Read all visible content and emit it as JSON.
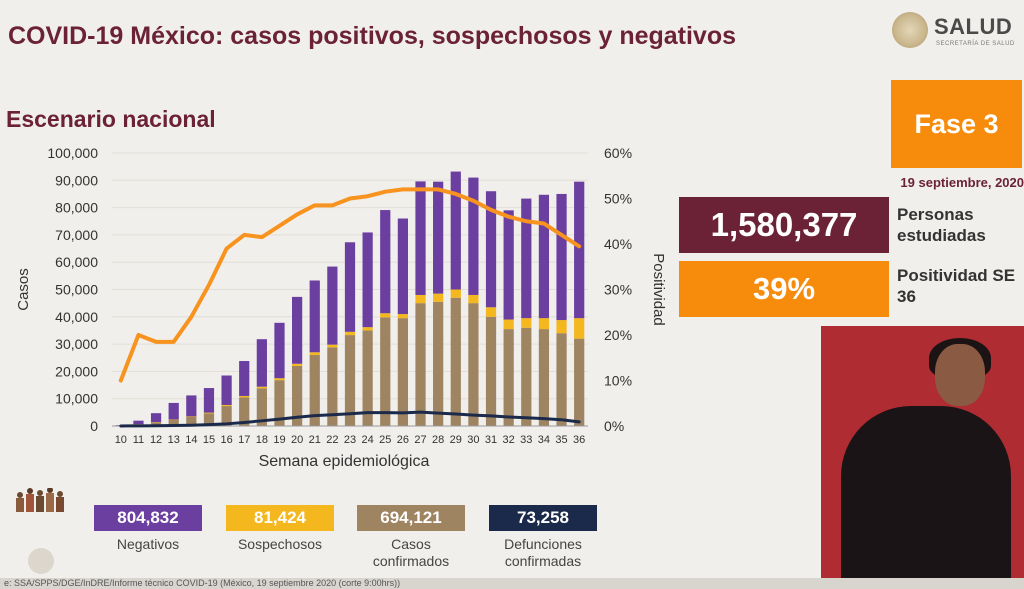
{
  "header": {
    "title": "COVID-19 México: casos positivos, sospechosos y negativos",
    "subtitle": "Escenario nacional",
    "logo_text": "SALUD",
    "logo_subtext": "SECRETARÍA DE SALUD"
  },
  "side_panel": {
    "phase": "Fase 3",
    "date": "19 septiembre, 2020",
    "studied_value": "1,580,377",
    "studied_label": "Personas estudiadas",
    "positivity_value": "39%",
    "positivity_label": "Positividad SE 36"
  },
  "legend": {
    "negatives": {
      "value": "804,832",
      "label": "Negativos"
    },
    "suspects": {
      "value": "81,424",
      "label": "Sospechosos"
    },
    "confirmed": {
      "value": "694,121",
      "label": "Casos confirmados"
    },
    "deaths": {
      "value": "73,258",
      "label": "Defunciones confirmadas"
    }
  },
  "colors": {
    "negatives": "#6b3fa0",
    "suspects": "#f4b81e",
    "confirmed": "#9e8460",
    "deaths": "#1b2a4a",
    "positivity": "#f7931e",
    "title": "#6b2237"
  },
  "footer": "e: SSA/SPPS/DGE/InDRE/Informe técnico COVID-19 (México, 19 septiembre 2020 (corte 9:00hrs))",
  "chart_data": {
    "type": "bar",
    "stacked": true,
    "xlabel": "Semana epidemiológica",
    "ylabel": "Casos",
    "y2label": "Positividad",
    "ylim": [
      0,
      100000
    ],
    "y2lim": [
      0,
      60
    ],
    "yticks": [
      "0",
      "10,000",
      "20,000",
      "30,000",
      "40,000",
      "50,000",
      "60,000",
      "70,000",
      "80,000",
      "90,000",
      "100,000"
    ],
    "y2ticks": [
      "0%",
      "10%",
      "20%",
      "30%",
      "40%",
      "50%",
      "60%"
    ],
    "categories": [
      "10",
      "11",
      "12",
      "13",
      "14",
      "15",
      "16",
      "17",
      "18",
      "19",
      "20",
      "21",
      "22",
      "23",
      "24",
      "25",
      "26",
      "27",
      "28",
      "29",
      "30",
      "31",
      "32",
      "33",
      "34",
      "35",
      "36"
    ],
    "series": [
      {
        "name": "Casos confirmados",
        "kind": "bar",
        "axis": "left",
        "values": [
          100,
          600,
          1300,
          2200,
          3300,
          4600,
          7300,
          10500,
          13800,
          16800,
          22000,
          26000,
          28800,
          33300,
          35000,
          39800,
          39500,
          45000,
          45500,
          47000,
          45000,
          40000,
          35500,
          36000,
          35500,
          34000,
          32000
        ]
      },
      {
        "name": "Sospechosos",
        "kind": "bar",
        "axis": "left",
        "values": [
          0,
          50,
          100,
          150,
          200,
          300,
          400,
          500,
          600,
          700,
          800,
          1000,
          1000,
          1200,
          1200,
          1500,
          1500,
          3000,
          3000,
          3000,
          3000,
          3500,
          3500,
          3500,
          4000,
          4800,
          7500
        ]
      },
      {
        "name": "Negativos",
        "kind": "bar",
        "axis": "left",
        "values": [
          200,
          1300,
          3300,
          6100,
          7700,
          9000,
          10800,
          12800,
          17400,
          20300,
          24500,
          26300,
          28600,
          32800,
          34700,
          37800,
          35000,
          41600,
          41000,
          43200,
          43000,
          42500,
          40000,
          43800,
          45200,
          46200,
          50000
        ]
      },
      {
        "name": "Defunciones confirmadas",
        "kind": "line",
        "axis": "left",
        "values": [
          20,
          50,
          100,
          180,
          280,
          500,
          800,
          1300,
          1900,
          2500,
          3200,
          3800,
          4100,
          4500,
          4900,
          4900,
          4800,
          5100,
          4700,
          4400,
          4000,
          3700,
          3300,
          3000,
          2700,
          2300,
          1500
        ]
      },
      {
        "name": "Positividad",
        "kind": "line",
        "axis": "right",
        "values": [
          10,
          20,
          18.5,
          18.5,
          24,
          31,
          39,
          42,
          41.5,
          44,
          46.5,
          48.5,
          48.5,
          50,
          50.5,
          51.5,
          52,
          52,
          52,
          51,
          49.5,
          47.5,
          46,
          45,
          44.5,
          42,
          39.5
        ]
      }
    ]
  }
}
